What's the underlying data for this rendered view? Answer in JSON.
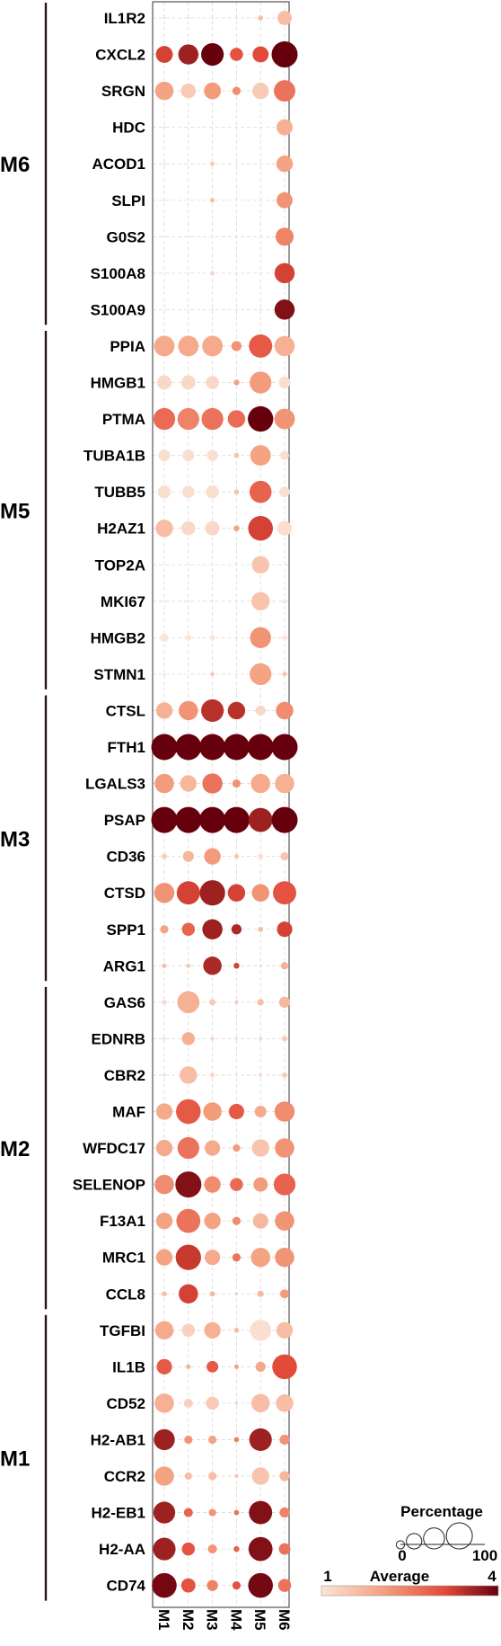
{
  "chart_data": {
    "type": "dotplot",
    "columns": [
      "M1",
      "M2",
      "M3",
      "M4",
      "M5",
      "M6"
    ],
    "modules": [
      {
        "name": "M6",
        "genes": [
          {
            "gene": "IL1R2",
            "pct": [
              1,
              1,
              1,
              1,
              4,
              30
            ],
            "avg": [
              1,
              1,
              1,
              1,
              1.6,
              1.6
            ]
          },
          {
            "gene": "CXCL2",
            "pct": [
              42,
              60,
              75,
              25,
              38,
              100
            ],
            "avg": [
              3.2,
              3.6,
              4,
              3,
              3.1,
              4
            ]
          },
          {
            "gene": "SRGN",
            "pct": [
              50,
              32,
              42,
              10,
              40,
              68
            ],
            "avg": [
              2,
              1.4,
              2.1,
              2.3,
              1.4,
              2.6
            ]
          },
          {
            "gene": "HDC",
            "pct": [
              1,
              0,
              0,
              0,
              0,
              38
            ],
            "avg": [
              1,
              1,
              1,
              1,
              1,
              1.8
            ]
          },
          {
            "gene": "ACOD1",
            "pct": [
              1,
              0,
              3,
              0,
              0,
              40
            ],
            "avg": [
              1,
              1,
              1.4,
              1,
              1,
              2
            ]
          },
          {
            "gene": "SLPI",
            "pct": [
              1,
              0,
              3,
              0,
              1,
              38
            ],
            "avg": [
              1,
              1,
              1.6,
              1,
              1,
              2.2
            ]
          },
          {
            "gene": "G0S2",
            "pct": [
              0,
              0,
              0,
              0,
              0,
              48
            ],
            "avg": [
              1,
              1,
              1,
              1,
              1,
              2.4
            ]
          },
          {
            "gene": "S100A8",
            "pct": [
              0,
              0,
              3,
              0,
              1,
              60
            ],
            "avg": [
              1,
              1,
              1.2,
              1,
              1,
              3.2
            ]
          },
          {
            "gene": "S100A9",
            "pct": [
              0,
              0,
              1,
              0,
              1,
              60
            ],
            "avg": [
              1,
              1,
              1,
              1,
              1,
              3.8
            ]
          }
        ]
      },
      {
        "name": "M5",
        "genes": [
          {
            "gene": "PPIA",
            "pct": [
              62,
              62,
              62,
              15,
              80,
              60
            ],
            "avg": [
              1.9,
              1.9,
              1.9,
              2.2,
              2.9,
              1.8
            ]
          },
          {
            "gene": "HMGB1",
            "pct": [
              30,
              30,
              25,
              5,
              70,
              20
            ],
            "avg": [
              1.2,
              1.2,
              1.2,
              2,
              2.1,
              1.1
            ]
          },
          {
            "gene": "PTMA",
            "pct": [
              70,
              70,
              70,
              45,
              95,
              62
            ],
            "avg": [
              2.7,
              2.4,
              2.6,
              2.7,
              4,
              2.2
            ]
          },
          {
            "gene": "TUBA1B",
            "pct": [
              20,
              20,
              18,
              4,
              62,
              12
            ],
            "avg": [
              1.1,
              1.1,
              1.1,
              1.5,
              2,
              1.1
            ]
          },
          {
            "gene": "TUBB5",
            "pct": [
              25,
              22,
              25,
              4,
              72,
              16
            ],
            "avg": [
              1.1,
              1.1,
              1.1,
              1.5,
              2.8,
              1.1
            ]
          },
          {
            "gene": "H2AZ1",
            "pct": [
              45,
              28,
              30,
              5,
              90,
              32
            ],
            "avg": [
              1.6,
              1.2,
              1.2,
              2,
              3.2,
              1.1
            ]
          },
          {
            "gene": "TOP2A",
            "pct": [
              0,
              0,
              0,
              0,
              45,
              0
            ],
            "avg": [
              1,
              1,
              1,
              1,
              1.5,
              1
            ]
          },
          {
            "gene": "MKI67",
            "pct": [
              0,
              0,
              0,
              1,
              50,
              3
            ],
            "avg": [
              1,
              1,
              1,
              1,
              1.5,
              1
            ]
          },
          {
            "gene": "HMGB2",
            "pct": [
              10,
              5,
              4,
              1,
              65,
              4
            ],
            "avg": [
              1,
              1,
              1,
              1,
              2.2,
              1
            ]
          },
          {
            "gene": "STMN1",
            "pct": [
              1,
              0,
              2,
              0,
              70,
              3
            ],
            "avg": [
              1,
              1,
              1.5,
              1,
              2,
              1.5
            ]
          }
        ]
      },
      {
        "name": "M3",
        "genes": [
          {
            "gene": "CTSL",
            "pct": [
              40,
              55,
              75,
              45,
              15,
              45
            ],
            "avg": [
              1.8,
              2.2,
              3.4,
              3.4,
              1.2,
              2.3
            ]
          },
          {
            "gene": "FTH1",
            "pct": [
              100,
              100,
              100,
              100,
              100,
              100
            ],
            "avg": [
              4,
              4,
              4,
              4,
              4,
              4
            ]
          },
          {
            "gene": "LGALS3",
            "pct": [
              55,
              40,
              60,
              10,
              55,
              55
            ],
            "avg": [
              2.1,
              1.7,
              2.6,
              2.2,
              1.9,
              1.8
            ]
          },
          {
            "gene": "PSAP",
            "pct": [
              100,
              100,
              100,
              100,
              85,
              100
            ],
            "avg": [
              4,
              4,
              4,
              4,
              3.6,
              4
            ]
          },
          {
            "gene": "CD36",
            "pct": [
              4,
              18,
              40,
              3,
              4,
              10
            ],
            "avg": [
              1.4,
              1.7,
              2.1,
              1.5,
              1.1,
              1.5
            ]
          },
          {
            "gene": "CTSD",
            "pct": [
              60,
              80,
              95,
              45,
              45,
              80
            ],
            "avg": [
              2.2,
              3.2,
              3.6,
              3.2,
              2.2,
              3
            ]
          },
          {
            "gene": "SPP1",
            "pct": [
              10,
              25,
              60,
              15,
              4,
              35
            ],
            "avg": [
              2,
              2.8,
              3.6,
              3.5,
              1.6,
              3.2
            ]
          },
          {
            "gene": "ARG1",
            "pct": [
              3,
              3,
              50,
              5,
              1,
              8
            ],
            "avg": [
              1.6,
              1.4,
              3.5,
              3.2,
              1.2,
              1.8
            ]
          }
        ]
      },
      {
        "name": "M2",
        "genes": [
          {
            "gene": "GAS6",
            "pct": [
              3,
              72,
              6,
              2,
              6,
              18
            ],
            "avg": [
              1.2,
              1.8,
              1.4,
              1.4,
              1.6,
              1.7
            ]
          },
          {
            "gene": "EDNRB",
            "pct": [
              2,
              25,
              2,
              1,
              2,
              4
            ],
            "avg": [
              1,
              1.8,
              1.2,
              1.2,
              1.2,
              1.4
            ]
          },
          {
            "gene": "CBR2",
            "pct": [
              2,
              45,
              3,
              1,
              2,
              4
            ],
            "avg": [
              1,
              1.6,
              1.2,
              1,
              1.2,
              1.4
            ]
          },
          {
            "gene": "MAF",
            "pct": [
              40,
              90,
              50,
              35,
              20,
              60
            ],
            "avg": [
              1.9,
              2.9,
              2.1,
              2.9,
              1.9,
              2.3
            ]
          },
          {
            "gene": "WFDC17",
            "pct": [
              40,
              70,
              35,
              8,
              45,
              55
            ],
            "avg": [
              1.9,
              2.6,
              1.9,
              2.1,
              1.5,
              2.2
            ]
          },
          {
            "gene": "SELENOP",
            "pct": [
              55,
              100,
              40,
              25,
              30,
              70
            ],
            "avg": [
              2.3,
              3.8,
              2.3,
              2.7,
              2.1,
              2.8
            ]
          },
          {
            "gene": "F13A1",
            "pct": [
              40,
              85,
              40,
              10,
              35,
              55
            ],
            "avg": [
              2,
              2.6,
              2,
              2.3,
              1.7,
              2.2
            ]
          },
          {
            "gene": "MRC1",
            "pct": [
              40,
              95,
              35,
              10,
              55,
              55
            ],
            "avg": [
              2,
              3.3,
              1.9,
              2.6,
              2,
              2.2
            ]
          },
          {
            "gene": "CCL8",
            "pct": [
              4,
              55,
              4,
              1,
              6,
              12
            ],
            "avg": [
              1.6,
              3.2,
              1.7,
              1.5,
              1.7,
              2.1
            ]
          }
        ]
      },
      {
        "name": "M1",
        "genes": [
          {
            "gene": "TGFBI",
            "pct": [
              50,
              25,
              40,
              4,
              65,
              40
            ],
            "avg": [
              1.9,
              1.3,
              1.8,
              1.6,
              1.1,
              1.6
            ]
          },
          {
            "gene": "IL1B",
            "pct": [
              35,
              3,
              20,
              3,
              15,
              90
            ],
            "avg": [
              2.9,
              1.8,
              2.9,
              2,
              1.9,
              3.1
            ]
          },
          {
            "gene": "CD52",
            "pct": [
              55,
              12,
              25,
              2,
              50,
              45
            ],
            "avg": [
              1.8,
              1.3,
              1.4,
              1.2,
              1.6,
              1.6
            ]
          },
          {
            "gene": "H2-AB1",
            "pct": [
              65,
              10,
              10,
              4,
              75,
              15
            ],
            "avg": [
              3.6,
              2.2,
              2,
              2.4,
              3.6,
              2.2
            ]
          },
          {
            "gene": "CCR2",
            "pct": [
              55,
              8,
              10,
              2,
              45,
              15
            ],
            "avg": [
              2,
              1.6,
              1.6,
              1.5,
              1.5,
              1.7
            ]
          },
          {
            "gene": "H2-EB1",
            "pct": [
              70,
              12,
              8,
              4,
              80,
              15
            ],
            "avg": [
              3.6,
              2.8,
              2.2,
              2.6,
              3.8,
              2.4
            ]
          },
          {
            "gene": "H2-AA",
            "pct": [
              75,
              25,
              12,
              5,
              85,
              20
            ],
            "avg": [
              3.6,
              3,
              2.2,
              2.8,
              3.8,
              2.6
            ]
          },
          {
            "gene": "CD74",
            "pct": [
              90,
              30,
              18,
              10,
              90,
              25
            ],
            "avg": [
              3.9,
              3,
              2.4,
              3,
              3.9,
              2.6
            ]
          }
        ]
      }
    ],
    "size_legend": {
      "title": "Percentage",
      "min_label": "0",
      "max_label": "100",
      "steps": [
        10,
        35,
        65,
        100
      ]
    },
    "color_legend": {
      "title": "Average",
      "min_label": "1",
      "max_label": "4",
      "range": [
        1,
        4
      ],
      "colors": [
        "#fbe5d8",
        "#f4a07f",
        "#e24a3a",
        "#67000d"
      ]
    }
  }
}
